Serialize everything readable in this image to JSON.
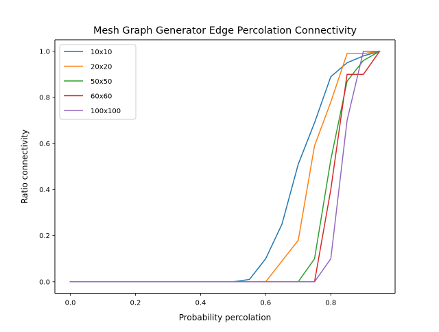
{
  "chart_data": {
    "type": "line",
    "title": "Mesh Graph Generator Edge Percolation Connectivity",
    "xlabel": "Probability percolation",
    "ylabel": "Ratio connectivity",
    "xlim": [
      -0.0475,
      0.9975
    ],
    "ylim": [
      -0.05,
      1.05
    ],
    "xticks": [
      0.0,
      0.2,
      0.4,
      0.6,
      0.8
    ],
    "xtick_labels": [
      "0.0",
      "0.2",
      "0.4",
      "0.6",
      "0.8"
    ],
    "yticks": [
      0.0,
      0.2,
      0.4,
      0.6,
      0.8,
      1.0
    ],
    "ytick_labels": [
      "0.0",
      "0.2",
      "0.4",
      "0.6",
      "0.8",
      "1.0"
    ],
    "grid": false,
    "legend_position": "top-left",
    "x": [
      0.0,
      0.05,
      0.1,
      0.15,
      0.2,
      0.25,
      0.3,
      0.35,
      0.4,
      0.45,
      0.5,
      0.55,
      0.6,
      0.65,
      0.7,
      0.75,
      0.8,
      0.85,
      0.9,
      0.95
    ],
    "series": [
      {
        "name": "10x10",
        "color": "#1f77b4",
        "values": [
          0,
          0,
          0,
          0,
          0,
          0,
          0,
          0,
          0,
          0,
          0,
          0.01,
          0.1,
          0.25,
          0.51,
          0.69,
          0.89,
          0.95,
          0.98,
          1.0
        ]
      },
      {
        "name": "20x20",
        "color": "#ff7f0e",
        "values": [
          0,
          0,
          0,
          0,
          0,
          0,
          0,
          0,
          0,
          0,
          0,
          0,
          0,
          0.09,
          0.18,
          0.59,
          0.78,
          0.99,
          0.99,
          1.0
        ]
      },
      {
        "name": "50x50",
        "color": "#2ca02c",
        "values": [
          0,
          0,
          0,
          0,
          0,
          0,
          0,
          0,
          0,
          0,
          0,
          0,
          0,
          0,
          0,
          0.1,
          0.53,
          0.87,
          0.96,
          1.0
        ]
      },
      {
        "name": "60x60",
        "color": "#d62728",
        "values": [
          0,
          0,
          0,
          0,
          0,
          0,
          0,
          0,
          0,
          0,
          0,
          0,
          0,
          0,
          0,
          0,
          0.4,
          0.9,
          0.9,
          1.0
        ]
      },
      {
        "name": "100x100",
        "color": "#9467bd",
        "values": [
          0,
          0,
          0,
          0,
          0,
          0,
          0,
          0,
          0,
          0,
          0,
          0,
          0,
          0,
          0,
          0,
          0.1,
          0.7,
          1.0,
          1.0
        ]
      }
    ]
  }
}
